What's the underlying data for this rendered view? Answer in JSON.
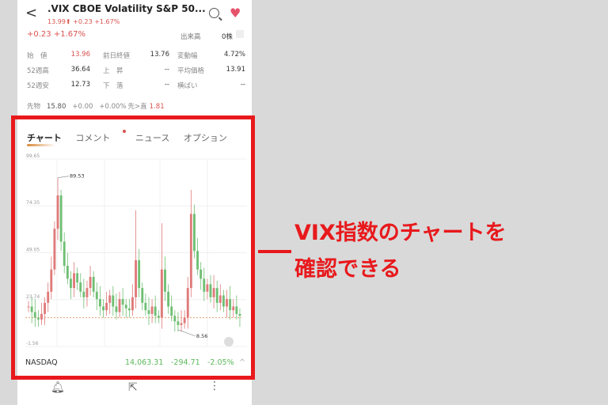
{
  "header": {
    "title": ".VIX  CBOE Volatility S&P 50...",
    "price": "13.99",
    "arrow": "⬆",
    "change": "+0.23",
    "pct": "+1.67%"
  },
  "quote": {
    "change": "+0.23 +1.67%",
    "volume_label": "出来高",
    "volume_value": "0株"
  },
  "stats": [
    [
      {
        "l": "始　値",
        "v": "13.96",
        "red": true
      },
      {
        "l": "前日終値",
        "v": "13.76"
      },
      {
        "l": "変動幅",
        "v": "4.72%"
      }
    ],
    [
      {
        "l": "52週高",
        "v": "36.64"
      },
      {
        "l": "上　昇",
        "v": "--"
      },
      {
        "l": "平均価格",
        "v": "13.91"
      }
    ],
    [
      {
        "l": "52週安",
        "v": "12.73"
      },
      {
        "l": "下　落",
        "v": "--"
      },
      {
        "l": "横ばい",
        "v": "--"
      }
    ]
  ],
  "futures": {
    "label": "先物",
    "price": "15.80",
    "change": "+0.00",
    "pct": "+0.00%",
    "spread_label": "先>直",
    "spread": "1.81"
  },
  "tabs": [
    "チャート",
    "コメント",
    "ニュース",
    "オプション"
  ],
  "chart_data": {
    "type": "candlestick",
    "yticks": [
      99.65,
      74.35,
      49.05,
      23.74,
      -1.56
    ],
    "ylim": [
      -1.56,
      99.65
    ],
    "max_label": "89.53",
    "min_label": "8.56",
    "reference_line": 13.99,
    "colors": {
      "up": "#e07a7a",
      "down": "#6fbf73"
    },
    "closes": [
      20,
      17,
      14,
      13,
      16,
      22,
      28,
      40,
      62,
      80,
      55,
      42,
      35,
      30,
      38,
      33,
      28,
      25,
      30,
      36,
      28,
      24,
      20,
      18,
      22,
      26,
      20,
      17,
      24,
      21,
      19,
      18,
      25,
      45,
      30,
      22,
      18,
      16,
      20,
      15,
      14,
      40,
      28,
      20,
      15,
      12,
      10,
      11,
      14,
      30,
      70,
      50,
      40,
      35,
      28,
      32,
      25,
      30,
      22,
      26,
      20,
      24,
      18,
      20,
      16,
      15
    ],
    "highs": {
      "9": 89.53,
      "33": 72,
      "41": 65,
      "50": 83
    }
  },
  "bottom_ticker": {
    "name": "NASDAQ",
    "value": "14,063.31",
    "change": "-294.71",
    "pct": "-2.05%"
  },
  "annotation": {
    "line1": "VIX指数のチャートを",
    "line2": "確認できる"
  }
}
